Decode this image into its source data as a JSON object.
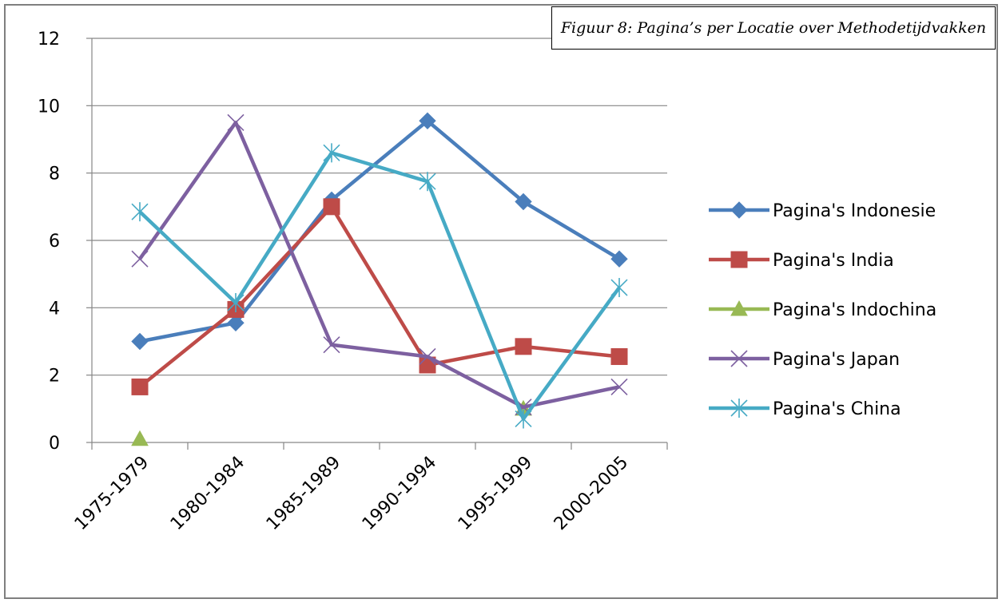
{
  "chart_data": {
    "type": "line",
    "title": "Figuur 8: Pagina’s per Locatie over Methodetijdvakken",
    "xlabel": "",
    "ylabel": "",
    "categories": [
      "1975-1979",
      "1980-1984",
      "1985-1989",
      "1990-1994",
      "1995-1999",
      "2000-2005"
    ],
    "ylim": [
      0,
      12
    ],
    "yticks": [
      0,
      2,
      4,
      6,
      8,
      10,
      12
    ],
    "grid": true,
    "legend_position": "right",
    "series": [
      {
        "name": "Pagina's Indonesie",
        "color": "#4a7ebb",
        "marker": "diamond",
        "values": [
          3.0,
          3.55,
          7.2,
          9.55,
          7.15,
          5.45
        ]
      },
      {
        "name": "Pagina's India",
        "color": "#be4b48",
        "marker": "square",
        "values": [
          1.65,
          3.95,
          7.0,
          2.3,
          2.85,
          2.55
        ]
      },
      {
        "name": "Pagina's Indochina",
        "color": "#98b954",
        "marker": "triangle",
        "values": [
          0.1,
          null,
          null,
          null,
          1.0,
          null
        ]
      },
      {
        "name": "Pagina's Japan",
        "color": "#7d60a0",
        "marker": "x",
        "values": [
          5.45,
          9.5,
          2.9,
          2.55,
          1.05,
          1.65
        ]
      },
      {
        "name": "Pagina's China",
        "color": "#46aac5",
        "marker": "asterisk",
        "values": [
          6.85,
          4.15,
          8.6,
          7.75,
          0.7,
          4.6
        ]
      }
    ]
  }
}
